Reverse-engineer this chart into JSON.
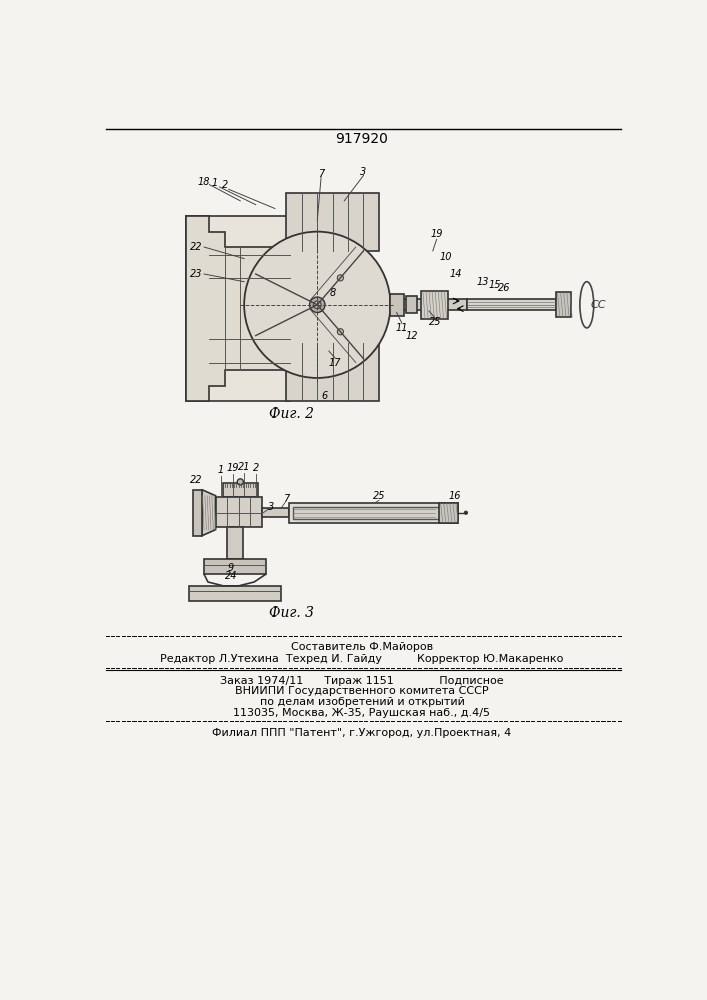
{
  "patent_number": "917920",
  "background_color": "#f5f3ef",
  "fig2_caption": "Фиг. 2",
  "fig3_caption": "Фиг. 3",
  "footer_line1": "Составитель Ф.Майоров",
  "footer_line2": "Редактор Л.Утехина  Техред И. Гайду          Корректор Ю.Макаренко",
  "footer_line3": "Заказ 1974/11      Тираж 1151             Подписное",
  "footer_line4": "ВНИИПИ Государственного комитета СССР",
  "footer_line5": "по делам изобретений и открытий",
  "footer_line6": "113035, Москва, Ж-35, Раушская наб., д.4/5",
  "footer_line7": "Филиал ППП \"Патент\", г.Ужгород, ул.Проектная, 4"
}
